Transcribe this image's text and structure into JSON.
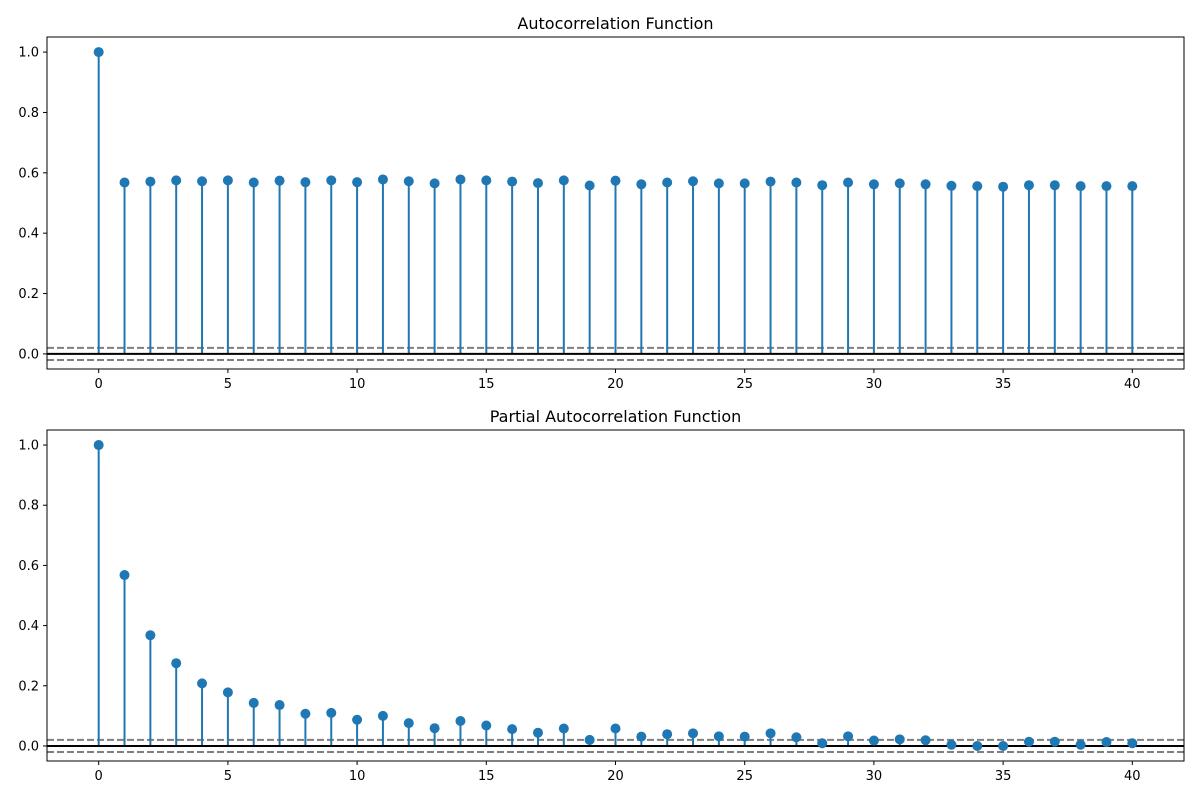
{
  "chart_data": [
    {
      "type": "stem",
      "title": "Autocorrelation Function",
      "xlabel": "",
      "ylabel": "",
      "xlim": [
        -2,
        42
      ],
      "ylim": [
        -0.05,
        1.05
      ],
      "xticks": [
        0,
        5,
        10,
        15,
        20,
        25,
        30,
        35,
        40
      ],
      "xtick_labels": [
        "0",
        "5",
        "10",
        "15",
        "20",
        "25",
        "30",
        "35",
        "40"
      ],
      "yticks": [
        0.0,
        0.2,
        0.4,
        0.6,
        0.8,
        1.0
      ],
      "ytick_labels": [
        "0.0",
        "0.2",
        "0.4",
        "0.6",
        "0.8",
        "1.0"
      ],
      "confidence_band": [
        -0.02,
        0.02
      ],
      "grid": false,
      "colors": {
        "stem": "#1f77b4",
        "confidence": "#808080",
        "baseline": "#000000"
      },
      "x": [
        0,
        1,
        2,
        3,
        4,
        5,
        6,
        7,
        8,
        9,
        10,
        11,
        12,
        13,
        14,
        15,
        16,
        17,
        18,
        19,
        20,
        21,
        22,
        23,
        24,
        25,
        26,
        27,
        28,
        29,
        30,
        31,
        32,
        33,
        34,
        35,
        36,
        37,
        38,
        39,
        40
      ],
      "values": [
        1.0,
        0.568,
        0.571,
        0.575,
        0.572,
        0.575,
        0.568,
        0.574,
        0.569,
        0.575,
        0.569,
        0.578,
        0.572,
        0.565,
        0.578,
        0.575,
        0.571,
        0.566,
        0.575,
        0.558,
        0.574,
        0.562,
        0.568,
        0.572,
        0.565,
        0.565,
        0.571,
        0.568,
        0.559,
        0.568,
        0.562,
        0.565,
        0.562,
        0.557,
        0.556,
        0.554,
        0.559,
        0.559,
        0.556,
        0.556,
        0.556
      ]
    },
    {
      "type": "stem",
      "title": "Partial Autocorrelation Function",
      "xlabel": "",
      "ylabel": "",
      "xlim": [
        -2,
        42
      ],
      "ylim": [
        -0.05,
        1.05
      ],
      "xticks": [
        0,
        5,
        10,
        15,
        20,
        25,
        30,
        35,
        40
      ],
      "xtick_labels": [
        "0",
        "5",
        "10",
        "15",
        "20",
        "25",
        "30",
        "35",
        "40"
      ],
      "yticks": [
        0.0,
        0.2,
        0.4,
        0.6,
        0.8,
        1.0
      ],
      "ytick_labels": [
        "0.0",
        "0.2",
        "0.4",
        "0.6",
        "0.8",
        "1.0"
      ],
      "confidence_band": [
        -0.02,
        0.02
      ],
      "grid": false,
      "colors": {
        "stem": "#1f77b4",
        "confidence": "#808080",
        "baseline": "#000000"
      },
      "x": [
        0,
        1,
        2,
        3,
        4,
        5,
        6,
        7,
        8,
        9,
        10,
        11,
        12,
        13,
        14,
        15,
        16,
        17,
        18,
        19,
        20,
        21,
        22,
        23,
        24,
        25,
        26,
        27,
        28,
        29,
        30,
        31,
        32,
        33,
        34,
        35,
        36,
        37,
        38,
        39,
        40
      ],
      "values": [
        1.0,
        0.568,
        0.368,
        0.275,
        0.208,
        0.178,
        0.143,
        0.136,
        0.107,
        0.11,
        0.087,
        0.1,
        0.076,
        0.059,
        0.083,
        0.068,
        0.056,
        0.044,
        0.058,
        0.02,
        0.058,
        0.031,
        0.039,
        0.042,
        0.032,
        0.031,
        0.042,
        0.029,
        0.009,
        0.032,
        0.018,
        0.022,
        0.019,
        0.004,
        0.0,
        0.0,
        0.014,
        0.014,
        0.004,
        0.013,
        0.009
      ]
    }
  ]
}
